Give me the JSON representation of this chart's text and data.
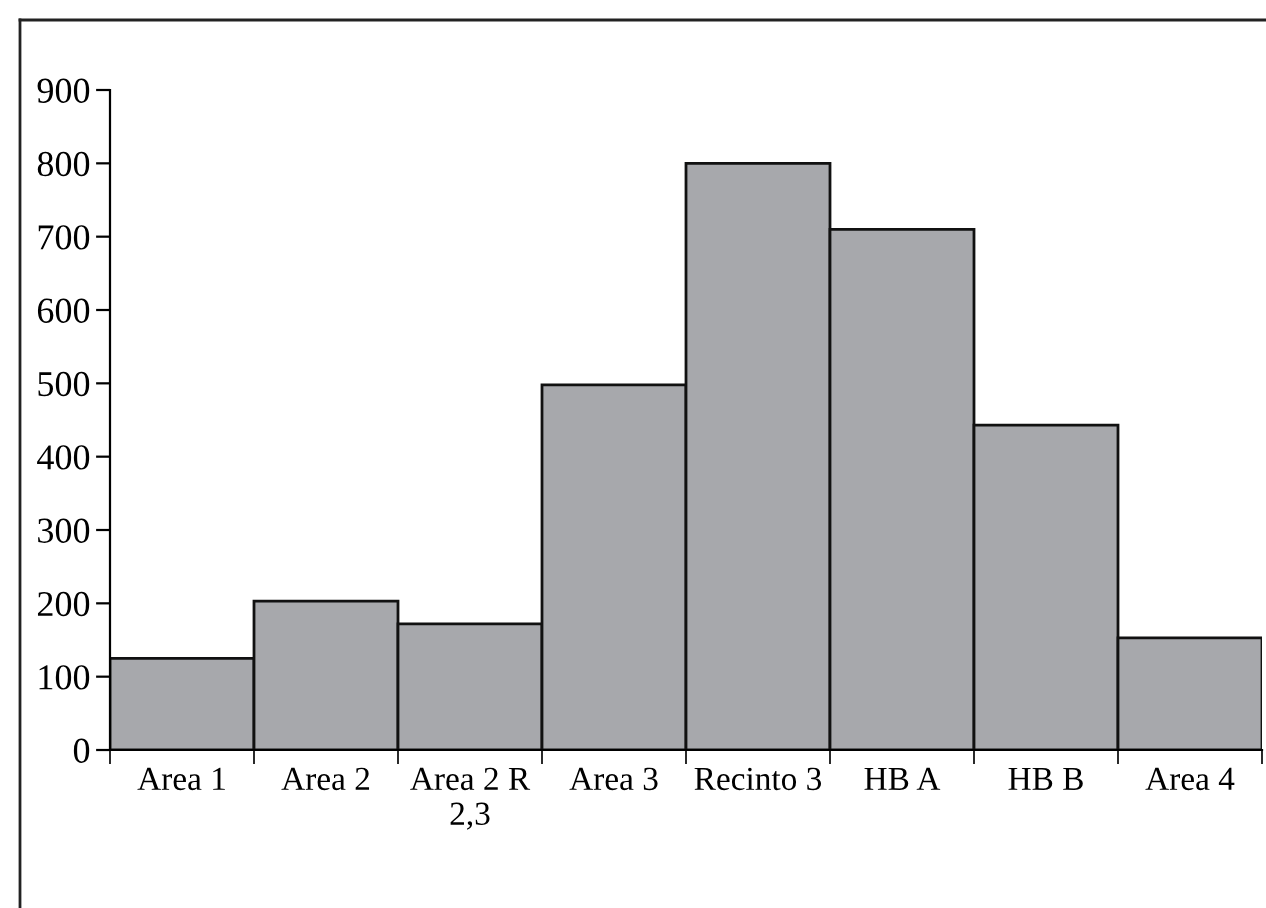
{
  "chart_data": {
    "type": "bar",
    "categories": [
      "Area 1",
      "Area 2",
      "Area 2 R\n2,3",
      "Area 3",
      "Recinto 3",
      "HB A",
      "HB B",
      "Area 4"
    ],
    "values": [
      125,
      203,
      172,
      498,
      800,
      710,
      443,
      153
    ],
    "color": "#a7a8ac",
    "ylim": [
      0,
      900
    ],
    "yticks": [
      0,
      100,
      200,
      300,
      400,
      500,
      600,
      700,
      800,
      900
    ],
    "grid": false
  }
}
